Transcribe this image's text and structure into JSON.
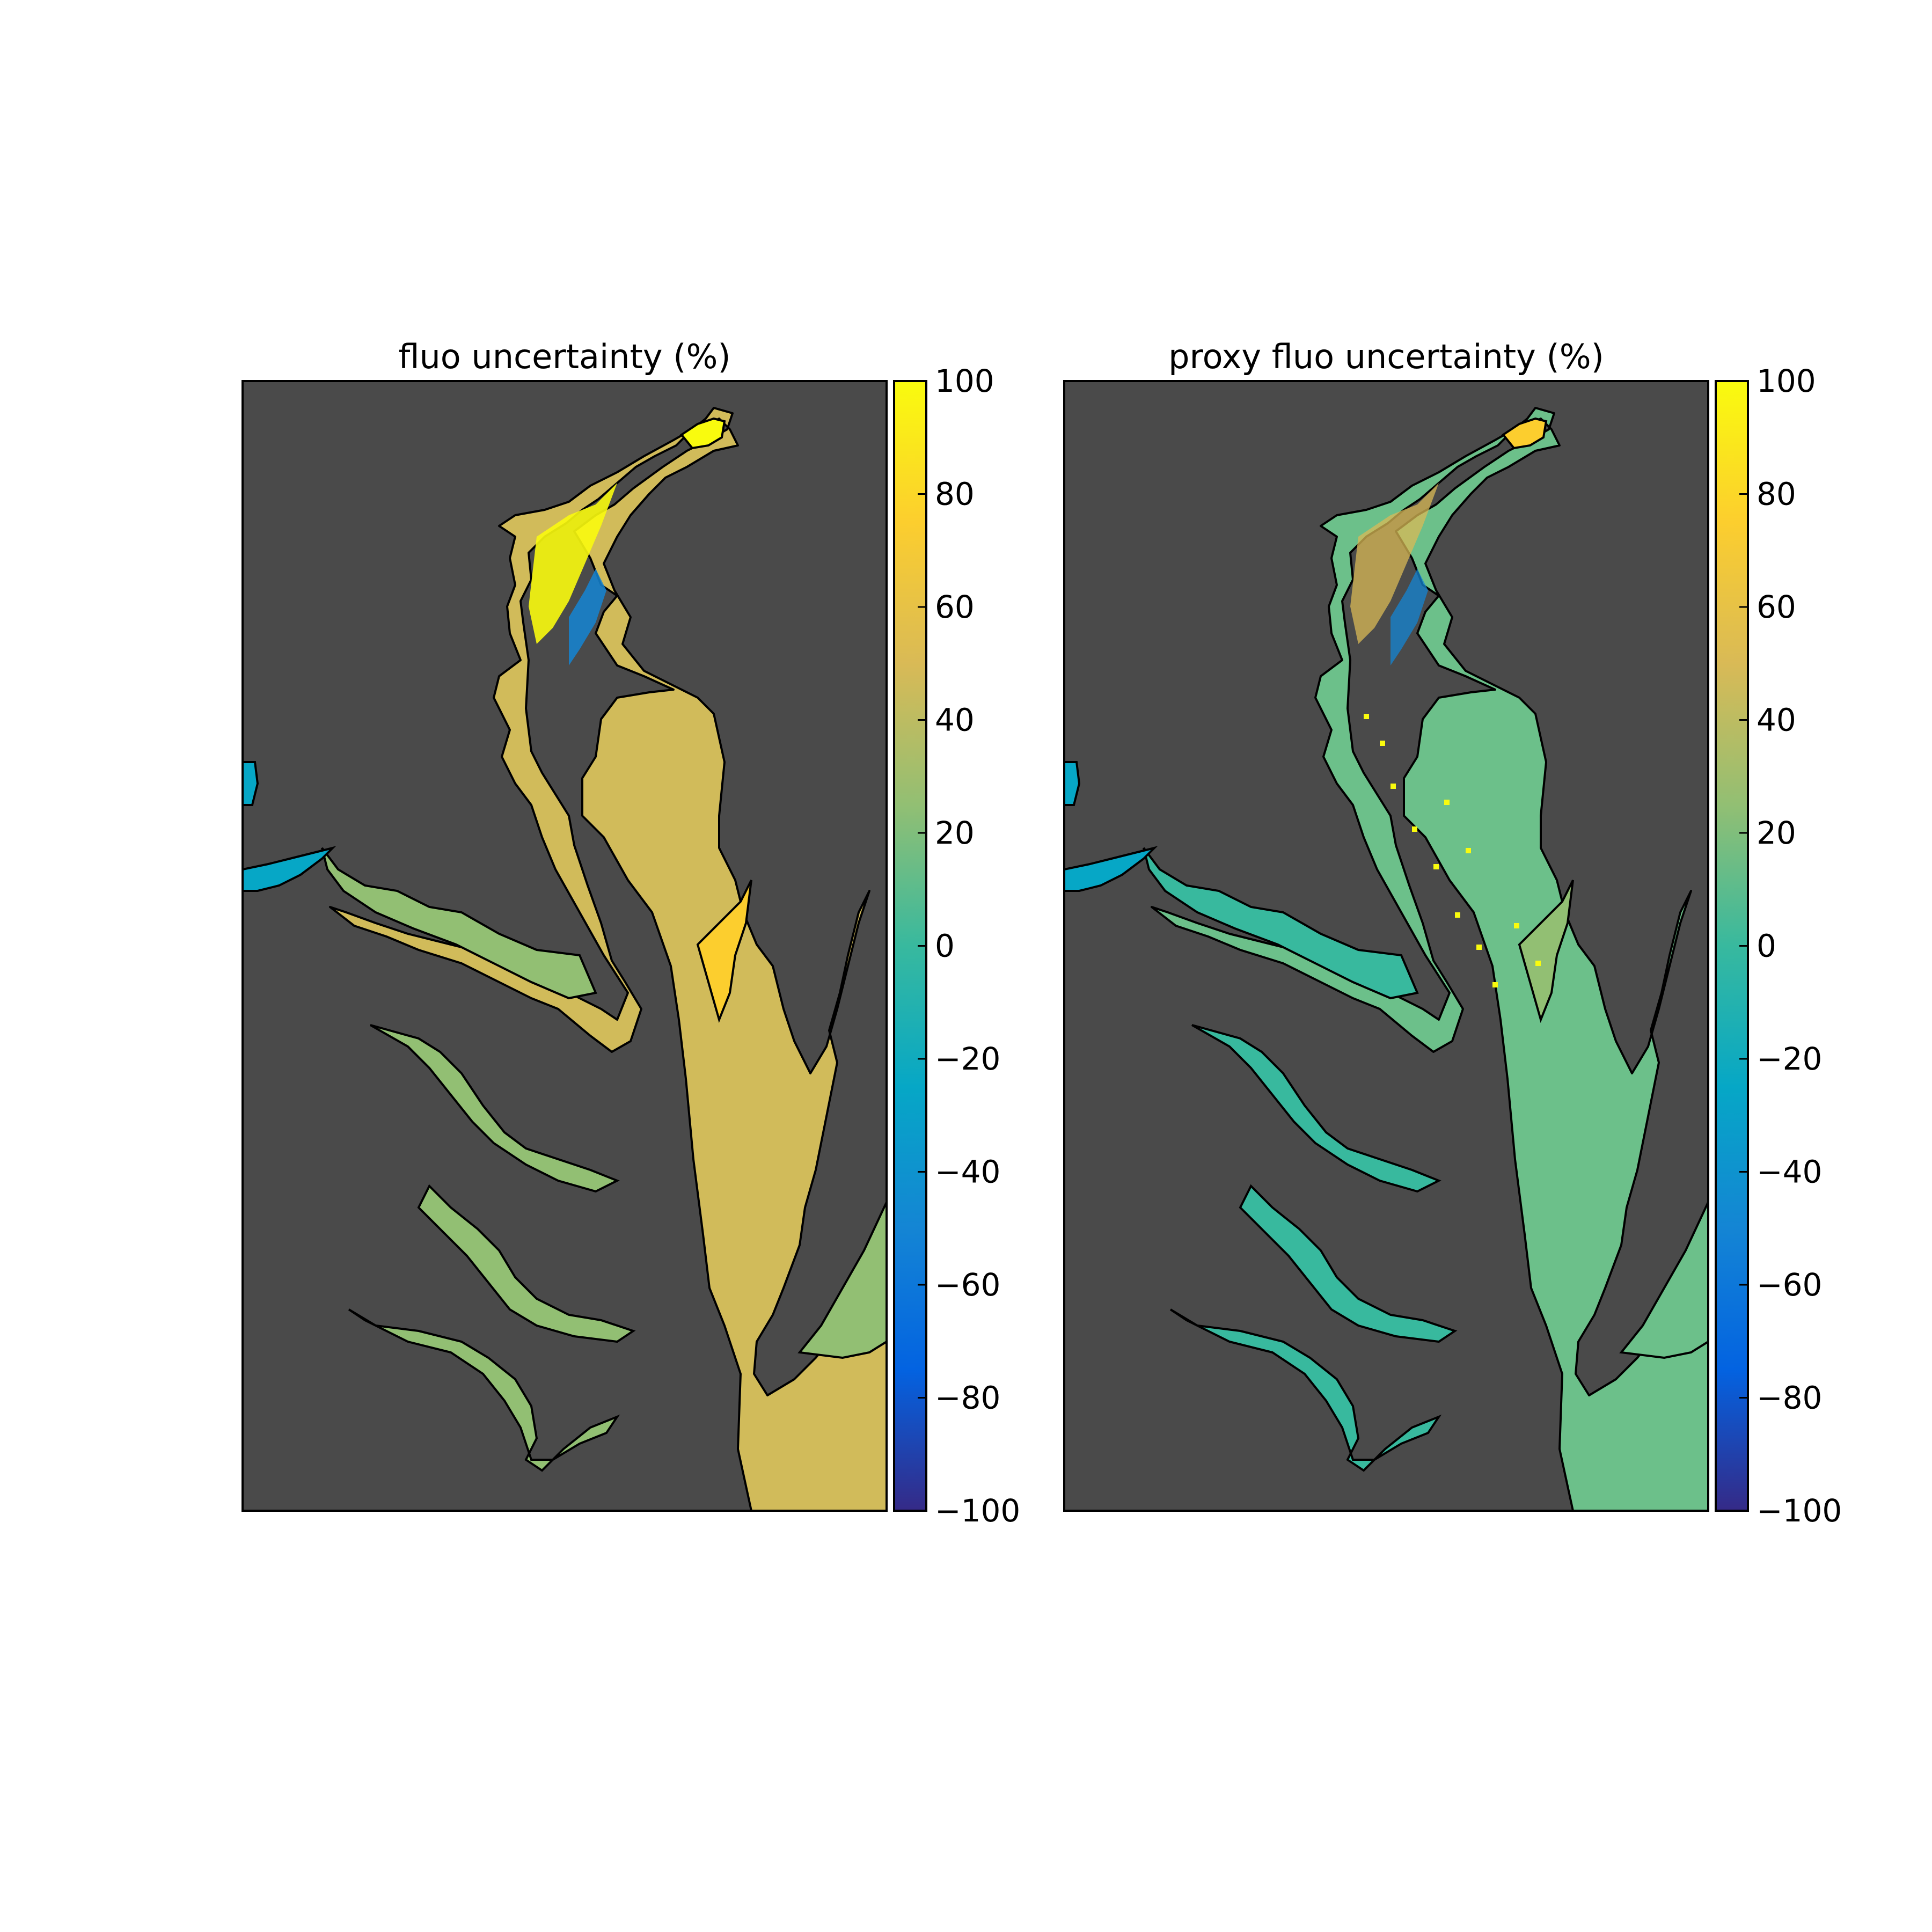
{
  "panels": [
    {
      "title": "fluo uncertainty (%)",
      "background_color": "#4a4a4a",
      "colorbar": {
        "ticks": [
          "100",
          "80",
          "60",
          "40",
          "20",
          "0",
          "−20",
          "−40",
          "−60",
          "−80",
          "−100"
        ],
        "range": [
          -100,
          100
        ],
        "colormap": "parula"
      },
      "dominant_value": 45
    },
    {
      "title": "proxy fluo uncertainty (%)",
      "background_color": "#4a4a4a",
      "colorbar": {
        "ticks": [
          "100",
          "80",
          "60",
          "40",
          "20",
          "0",
          "−20",
          "−40",
          "−60",
          "−80",
          "−100"
        ],
        "range": [
          -100,
          100
        ],
        "colormap": "parula"
      },
      "dominant_value": 18
    }
  ],
  "colors": {
    "land": "#4a4a4a",
    "coastline": "#000000",
    "parula": [
      "#352a87",
      "#0363e1",
      "#1485d4",
      "#06a7c6",
      "#38b99e",
      "#92bf73",
      "#d9ba56",
      "#fcce2e",
      "#f9fb0e"
    ]
  }
}
